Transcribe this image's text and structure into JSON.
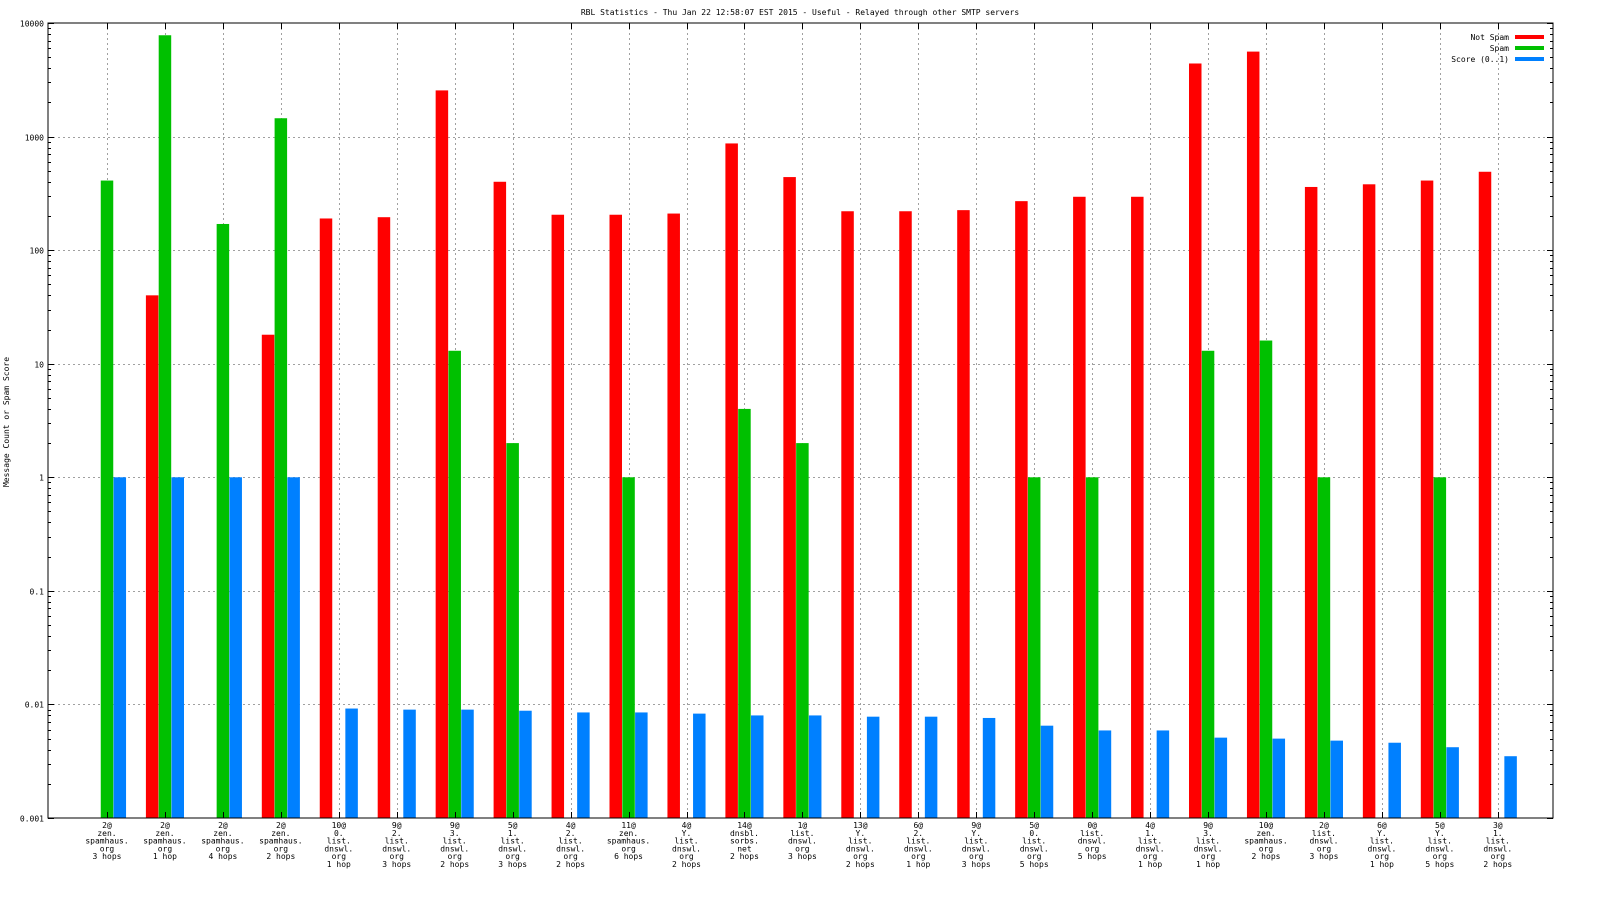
{
  "chart_data": {
    "type": "bar",
    "title": "RBL Statistics - Thu Jan 22 12:58:07 EST 2015 - Useful - Relayed through other SMTP servers",
    "ylabel": "Message Count or Spam Score",
    "xlabel": "",
    "yscale": "log",
    "ylim": [
      0.001,
      10000
    ],
    "yticks": [
      "0.001",
      "0.01",
      "0.1",
      "1",
      "10",
      "100",
      "1000",
      "10000"
    ],
    "grid": true,
    "legend_position": "top-right",
    "categories": [
      [
        "2@",
        "zen.",
        "spamhaus.",
        "org",
        "3 hops"
      ],
      [
        "2@",
        "zen.",
        "spamhaus.",
        "org",
        "1 hop"
      ],
      [
        "2@",
        "zen.",
        "spamhaus.",
        "org",
        "4 hops"
      ],
      [
        "2@",
        "zen.",
        "spamhaus.",
        "org",
        "2 hops"
      ],
      [
        "10@",
        "0.",
        "list.",
        "dnswl.",
        "org",
        "1 hop"
      ],
      [
        "9@",
        "2.",
        "list.",
        "dnswl.",
        "org",
        "3 hops"
      ],
      [
        "9@",
        "3.",
        "list.",
        "dnswl.",
        "org",
        "2 hops"
      ],
      [
        "5@",
        "1.",
        "list.",
        "dnswl.",
        "org",
        "3 hops"
      ],
      [
        "4@",
        "2.",
        "list.",
        "dnswl.",
        "org",
        "2 hops"
      ],
      [
        "11@",
        "zen.",
        "spamhaus.",
        "org",
        "6 hops"
      ],
      [
        "4@",
        "Y.",
        "list.",
        "dnswl.",
        "org",
        "2 hops"
      ],
      [
        "14@",
        "dnsbl.",
        "sorbs.",
        "net",
        "2 hops"
      ],
      [
        "1@",
        "list.",
        "dnswl.",
        "org",
        "3 hops"
      ],
      [
        "13@",
        "Y.",
        "list.",
        "dnswl.",
        "org",
        "2 hops"
      ],
      [
        "6@",
        "2.",
        "list.",
        "dnswl.",
        "org",
        "1 hop"
      ],
      [
        "9@",
        "Y.",
        "list.",
        "dnswl.",
        "org",
        "3 hops"
      ],
      [
        "5@",
        "0.",
        "list.",
        "dnswl.",
        "org",
        "5 hops"
      ],
      [
        "0@",
        "list.",
        "dnswl.",
        "org",
        "5 hops"
      ],
      [
        "4@",
        "1.",
        "list.",
        "dnswl.",
        "org",
        "1 hop"
      ],
      [
        "9@",
        "3.",
        "list.",
        "dnswl.",
        "org",
        "1 hop"
      ],
      [
        "10@",
        "zen.",
        "spamhaus.",
        "org",
        "2 hops"
      ],
      [
        "2@",
        "list.",
        "dnswl.",
        "org",
        "3 hops"
      ],
      [
        "6@",
        "Y.",
        "list.",
        "dnswl.",
        "org",
        "1 hop"
      ],
      [
        "5@",
        "Y.",
        "list.",
        "dnswl.",
        "org",
        "5 hops"
      ],
      [
        "3@",
        "1.",
        "list.",
        "dnswl.",
        "org",
        "2 hops"
      ]
    ],
    "series": [
      {
        "name": "Not Spam",
        "color": "#ff0000",
        "values": [
          null,
          40,
          null,
          18,
          190,
          195,
          2550,
          400,
          205,
          205,
          210,
          870,
          440,
          220,
          220,
          225,
          270,
          295,
          295,
          4400,
          5600,
          360,
          380,
          410,
          490
        ]
      },
      {
        "name": "Spam",
        "color": "#00c000",
        "values": [
          410,
          7800,
          170,
          1450,
          null,
          null,
          13,
          2,
          null,
          1,
          null,
          4,
          2,
          null,
          null,
          null,
          1,
          1,
          null,
          13,
          16,
          1,
          null,
          1,
          null
        ]
      },
      {
        "name": "Score (0..1)",
        "color": "#0080ff",
        "values": [
          1,
          1,
          1,
          1,
          0.0092,
          0.009,
          0.009,
          0.0088,
          0.0085,
          0.0085,
          0.0083,
          0.008,
          0.008,
          0.0078,
          0.0078,
          0.0076,
          0.0065,
          0.0059,
          0.0059,
          0.0051,
          0.005,
          0.0048,
          0.0046,
          0.0042,
          0.0035
        ]
      }
    ]
  }
}
